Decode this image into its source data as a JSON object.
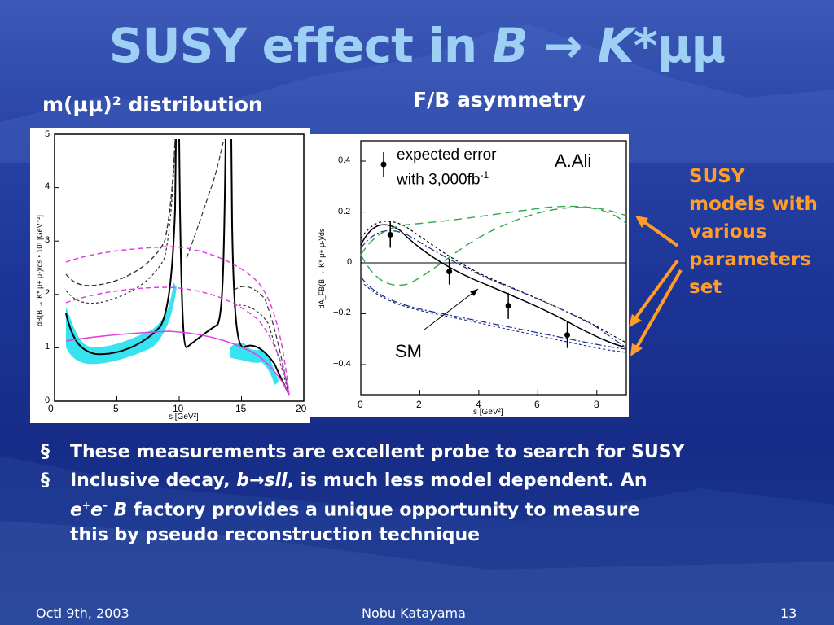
{
  "title": {
    "prefix": "SUSY effect in ",
    "var_b": "B",
    "arrow": " → ",
    "var_k": "K*",
    "suffix": "μμ"
  },
  "left_panel": {
    "title": "m(μμ)² distribution"
  },
  "right_panel": {
    "title": "F/B asymmetry"
  },
  "chart_data": [
    {
      "type": "line",
      "xlabel": "s [GeV²]",
      "ylabel": "dB(B → K* μ+ μ-)/ds • 10⁷ [GeV⁻²]",
      "xlim": [
        0,
        20
      ],
      "ylim": [
        0,
        5
      ],
      "x_ticks": [
        "0",
        "5",
        "10",
        "15",
        "20"
      ],
      "y_ticks": [
        "0",
        "1",
        "2",
        "3",
        "4",
        "5"
      ]
    },
    {
      "type": "line",
      "xlabel": "s [GeV²]",
      "ylabel": "dA_FB(B → K* μ+ μ-)/ds",
      "xlim": [
        0,
        9
      ],
      "ylim": [
        -0.5,
        0.5
      ],
      "x_ticks": [
        "0",
        "2",
        "4",
        "6",
        "8"
      ],
      "y_ticks": [
        "0.4",
        "0.2",
        "0",
        "−0.2",
        "−0.4"
      ],
      "legend": {
        "line1": "expected error",
        "line2": "with 3,000fb",
        "sup": "-1"
      },
      "credit": "A.Ali",
      "sm_label": "SM",
      "points": [
        {
          "x": 1.0,
          "y": 0.13
        },
        {
          "x": 3.0,
          "y": -0.015
        },
        {
          "x": 5.0,
          "y": -0.15
        },
        {
          "x": 7.0,
          "y": -0.265
        }
      ]
    }
  ],
  "annotation": [
    "SUSY",
    "models with",
    "various",
    "parameters",
    "set"
  ],
  "bullets": {
    "mark": "§",
    "b1": "These measurements are excellent probe to search for SUSY",
    "b2_a": "Inclusive decay, ",
    "b2_b": "b",
    "b2_arrow": "→",
    "b2_c": "sll",
    "b2_d": ", is much less model dependent. An",
    "b2_e": "e",
    "b2_eplus": "+",
    "b2_e2": "e",
    "b2_eminus": "–",
    "b2_B": " B",
    "b2_f": " factory provides a unique opportunity to measure",
    "b2_g": "this by pseudo reconstruction technique"
  },
  "footer": {
    "date": "Octl 9th, 2003",
    "author": "Nobu Katayama",
    "page": "13"
  },
  "colors": {
    "title": "#9ed0f6",
    "annotation": "#ff9c2a",
    "cyan_band": "#22e0ef",
    "magenta": "#e040e0",
    "green": "#2ea84a",
    "navy_dash": "#1a2a8a"
  }
}
